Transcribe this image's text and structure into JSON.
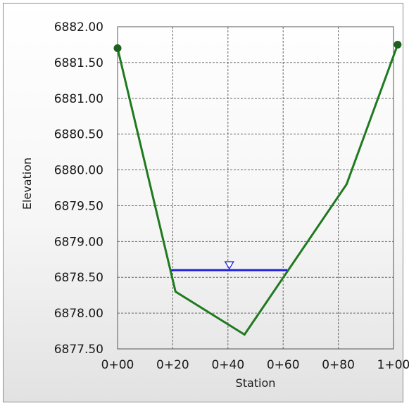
{
  "chart_data": {
    "type": "line",
    "xlabel": "Station",
    "ylabel": "Elevation",
    "xlim": [
      0,
      100
    ],
    "ylim": [
      6877.5,
      6882.0
    ],
    "x_ticks": [
      0,
      20,
      40,
      60,
      80,
      100
    ],
    "x_tick_labels": [
      "0+00",
      "0+20",
      "0+40",
      "0+60",
      "0+80",
      "1+00"
    ],
    "y_ticks": [
      6877.5,
      6878.0,
      6878.5,
      6879.0,
      6879.5,
      6880.0,
      6880.5,
      6881.0,
      6881.5,
      6882.0
    ],
    "y_tick_labels": [
      "6877.50",
      "6878.00",
      "6878.50",
      "6879.00",
      "6879.50",
      "6880.00",
      "6880.50",
      "6881.00",
      "6881.50",
      "6882.00"
    ],
    "grid": true,
    "series": [
      {
        "color": "#1f7a1f",
        "points": [
          {
            "x": 0,
            "y": 6881.7
          },
          {
            "x": 21,
            "y": 6878.3
          },
          {
            "x": 46,
            "y": 6877.7
          },
          {
            "x": 83,
            "y": 6879.8
          },
          {
            "x": 101.5,
            "y": 6881.75
          }
        ],
        "end_markers": true
      }
    ],
    "water_surface": {
      "color": "#2222dd",
      "elevation": 6878.6,
      "x_start": 19.5,
      "x_end": 61.5,
      "marker_x": 40.5,
      "marker": "triangle-down"
    }
  }
}
